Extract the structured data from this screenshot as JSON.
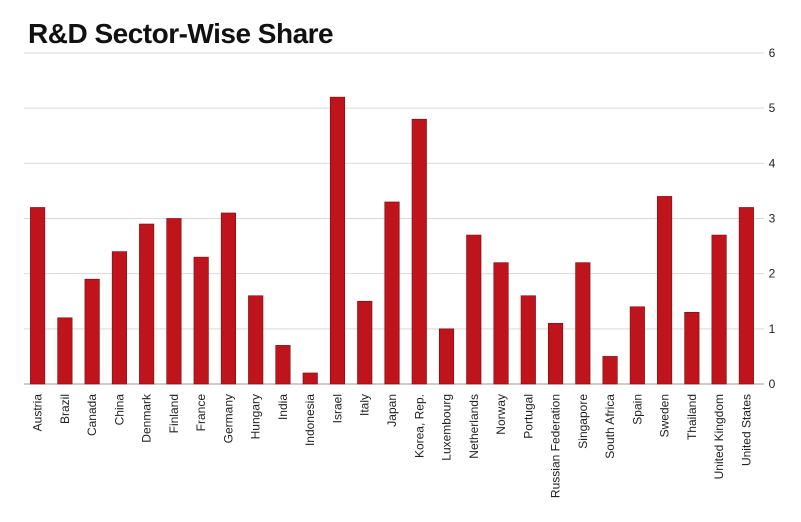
{
  "chart_data": {
    "type": "bar",
    "title": "R&D Sector-Wise Share",
    "xlabel": "",
    "ylabel": "",
    "ylim": [
      0,
      6
    ],
    "yticks": [
      0,
      1,
      2,
      3,
      4,
      5,
      6
    ],
    "y_axis_position": "right",
    "grid": true,
    "legend": "none",
    "bar_color": "#c0141c",
    "categories": [
      "Austria",
      "Brazil",
      "Canada",
      "China",
      "Denmark",
      "Finland",
      "France",
      "Germany",
      "Hungary",
      "India",
      "Indonesia",
      "Israel",
      "Italy",
      "Japan",
      "Korea, Rep.",
      "Luxembourg",
      "Netherlands",
      "Norway",
      "Portugal",
      "Russian Federation",
      "Singapore",
      "South Africa",
      "Spain",
      "Sweden",
      "Thailand",
      "United Kingdom",
      "United States"
    ],
    "values": [
      3.2,
      1.2,
      1.9,
      2.4,
      2.9,
      3.0,
      2.3,
      3.1,
      1.6,
      0.7,
      0.2,
      5.2,
      1.5,
      3.3,
      4.8,
      1.0,
      2.7,
      2.2,
      1.6,
      1.1,
      2.2,
      0.5,
      1.4,
      3.4,
      1.3,
      2.7,
      3.2
    ]
  }
}
